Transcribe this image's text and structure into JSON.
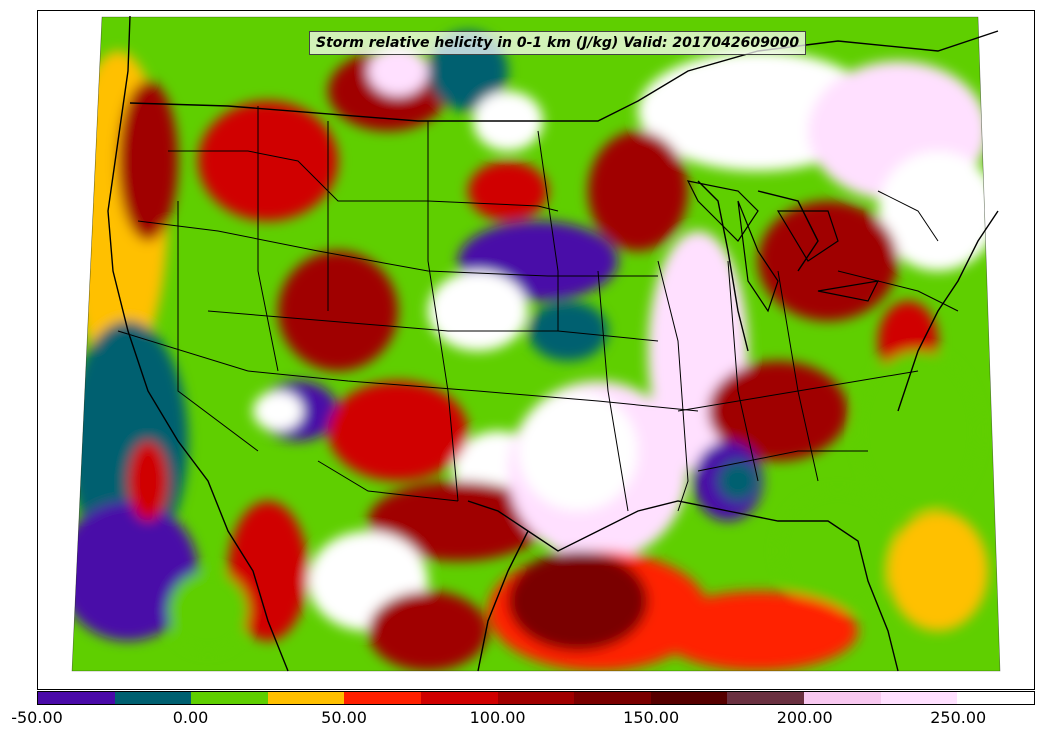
{
  "title": "Storm relative helicity in 0-1 km (J/kg) Valid: 2017042609000",
  "colorbar": {
    "min": -50,
    "max": 275,
    "step": 25,
    "colors": [
      "#4a0aa8",
      "#006070",
      "#5fcf00",
      "#ffc000",
      "#ff2000",
      "#d00000",
      "#a00000",
      "#7a0000",
      "#560000",
      "#6a3040",
      "#f8c8f0",
      "#ffe0ff",
      "#ffffff"
    ],
    "tick_labels": [
      "-50.00",
      "0.00",
      "50.00",
      "100.00",
      "150.00",
      "200.00",
      "250.00"
    ],
    "tick_values": [
      -50,
      0,
      50,
      100,
      150,
      200,
      250
    ]
  },
  "map": {
    "region": "CONUS",
    "background_color": "#ffffff",
    "outline_color": "#000000"
  }
}
